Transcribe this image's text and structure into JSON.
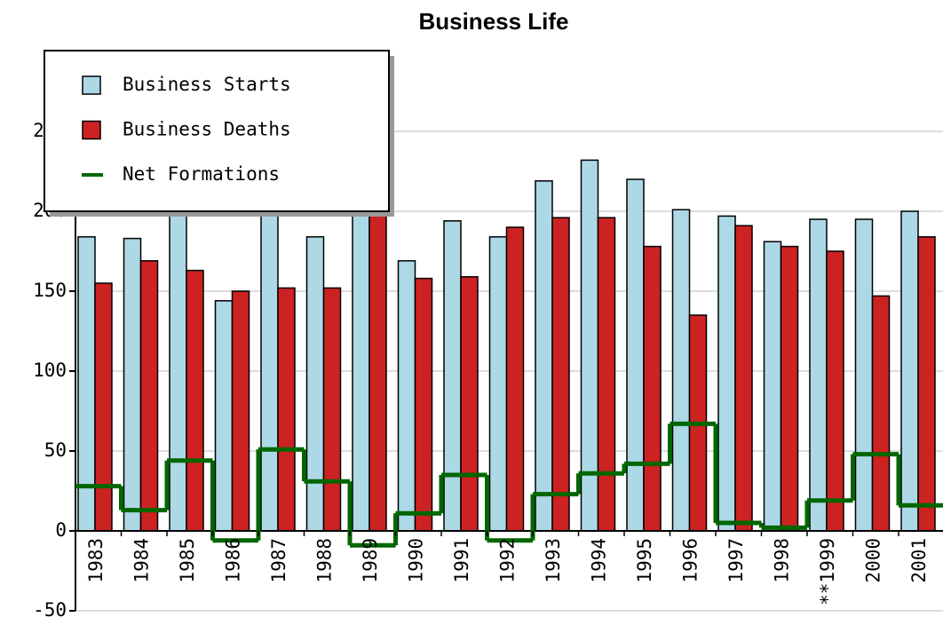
{
  "chart_data": {
    "type": "bar",
    "title": "Business Life",
    "categories": [
      "1983",
      "1984",
      "1985",
      "1986",
      "1987",
      "1988",
      "1989",
      "1990",
      "1991",
      "1992",
      "1993",
      "1994",
      "1995",
      "1996",
      "1997",
      "1998",
      "**1999",
      "2000",
      "2001"
    ],
    "series": [
      {
        "name": "Business Starts",
        "color": "#add8e6",
        "values": [
          184,
          183,
          207,
          144,
          203,
          184,
          200,
          169,
          194,
          184,
          219,
          232,
          220,
          201,
          197,
          181,
          195,
          195,
          200
        ]
      },
      {
        "name": "Business Deaths",
        "color": "#cc2222",
        "values": [
          155,
          169,
          163,
          150,
          152,
          152,
          209,
          158,
          159,
          190,
          196,
          196,
          178,
          135,
          191,
          178,
          175,
          147,
          184
        ]
      },
      {
        "name": "Net Formations",
        "type": "step",
        "color": "#006600",
        "values": [
          28,
          13,
          44,
          -6,
          51,
          31,
          -9,
          11,
          35,
          -6,
          23,
          36,
          42,
          67,
          5,
          2,
          19,
          48,
          16
        ]
      }
    ],
    "ylim": [
      -50,
      300
    ],
    "yticks": [
      -50,
      0,
      50,
      100,
      150,
      200,
      250
    ],
    "grid": true,
    "legend": "top-left"
  }
}
